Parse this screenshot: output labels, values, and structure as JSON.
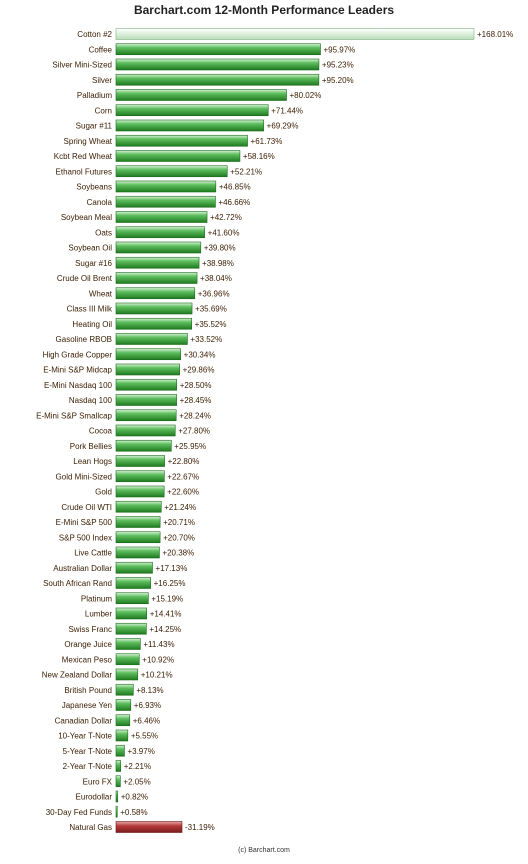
{
  "chart_data": {
    "type": "bar",
    "orientation": "horizontal",
    "title": "Barchart.com 12-Month Performance Leaders",
    "source": "(c) Barchart.com",
    "categories": [
      "Cotton #2",
      "Coffee",
      "Silver Mini-Sized",
      "Silver",
      "Palladium",
      "Corn",
      "Sugar #11",
      "Spring Wheat",
      "Kcbt Red Wheat",
      "Ethanol Futures",
      "Soybeans",
      "Canola",
      "Soybean Meal",
      "Oats",
      "Soybean Oil",
      "Sugar #16",
      "Crude Oil Brent",
      "Wheat",
      "Class III Milk",
      "Heating Oil",
      "Gasoline RBOB",
      "High Grade Copper",
      "E-Mini S&P Midcap",
      "E-Mini Nasdaq 100",
      "Nasdaq 100",
      "E-Mini S&P Smallcap",
      "Cocoa",
      "Pork Bellies",
      "Lean Hogs",
      "Gold Mini-Sized",
      "Gold",
      "Crude Oil WTI",
      "E-Mini S&P 500",
      "S&P 500 Index",
      "Live Cattle",
      "Australian Dollar",
      "South African Rand",
      "Platinum",
      "Lumber",
      "Swiss Franc",
      "Orange Juice",
      "Mexican Peso",
      "New Zealand Dollar",
      "British Pound",
      "Japanese Yen",
      "Canadian Dollar",
      "10-Year T-Note",
      "5-Year T-Note",
      "2-Year T-Note",
      "Euro FX",
      "Eurodollar",
      "30-Day Fed Funds",
      "Natural Gas"
    ],
    "values": [
      168.01,
      95.97,
      95.23,
      95.2,
      80.02,
      71.44,
      69.29,
      61.73,
      58.16,
      52.21,
      46.85,
      46.66,
      42.72,
      41.6,
      39.8,
      38.98,
      38.04,
      36.96,
      35.69,
      35.52,
      33.52,
      30.34,
      29.86,
      28.5,
      28.45,
      28.24,
      27.8,
      25.95,
      22.8,
      22.67,
      22.6,
      21.24,
      20.71,
      20.7,
      20.38,
      17.13,
      16.25,
      15.19,
      14.41,
      14.25,
      11.43,
      10.92,
      10.21,
      8.13,
      6.93,
      6.46,
      5.55,
      3.97,
      2.21,
      2.05,
      0.82,
      0.58,
      -31.19
    ],
    "value_labels": [
      "+168.01%",
      "+95.97%",
      "+95.23%",
      "+95.20%",
      "+80.02%",
      "+71.44%",
      "+69.29%",
      "+61.73%",
      "+58.16%",
      "+52.21%",
      "+46.85%",
      "+46.66%",
      "+42.72%",
      "+41.60%",
      "+39.80%",
      "+38.98%",
      "+38.04%",
      "+36.96%",
      "+35.69%",
      "+35.52%",
      "+33.52%",
      "+30.34%",
      "+29.86%",
      "+28.50%",
      "+28.45%",
      "+28.24%",
      "+27.80%",
      "+25.95%",
      "+22.80%",
      "+22.67%",
      "+22.60%",
      "+21.24%",
      "+20.71%",
      "+20.70%",
      "+20.38%",
      "+17.13%",
      "+16.25%",
      "+15.19%",
      "+14.41%",
      "+14.25%",
      "+11.43%",
      "+10.92%",
      "+10.21%",
      "+8.13%",
      "+6.93%",
      "+6.46%",
      "+5.55%",
      "+3.97%",
      "+2.21%",
      "+2.05%",
      "+0.82%",
      "+0.58%",
      "-31.19%"
    ],
    "xlim": [
      0,
      168.01
    ],
    "grid": false,
    "legend": "none",
    "colors": {
      "positive": "#2e9a2e",
      "positive_light": "#9ed69e",
      "highlight": "#d8eed8",
      "negative": "#9b2b2b",
      "negative_light": "#d98a8a",
      "label_text": "#3a1d00"
    }
  }
}
